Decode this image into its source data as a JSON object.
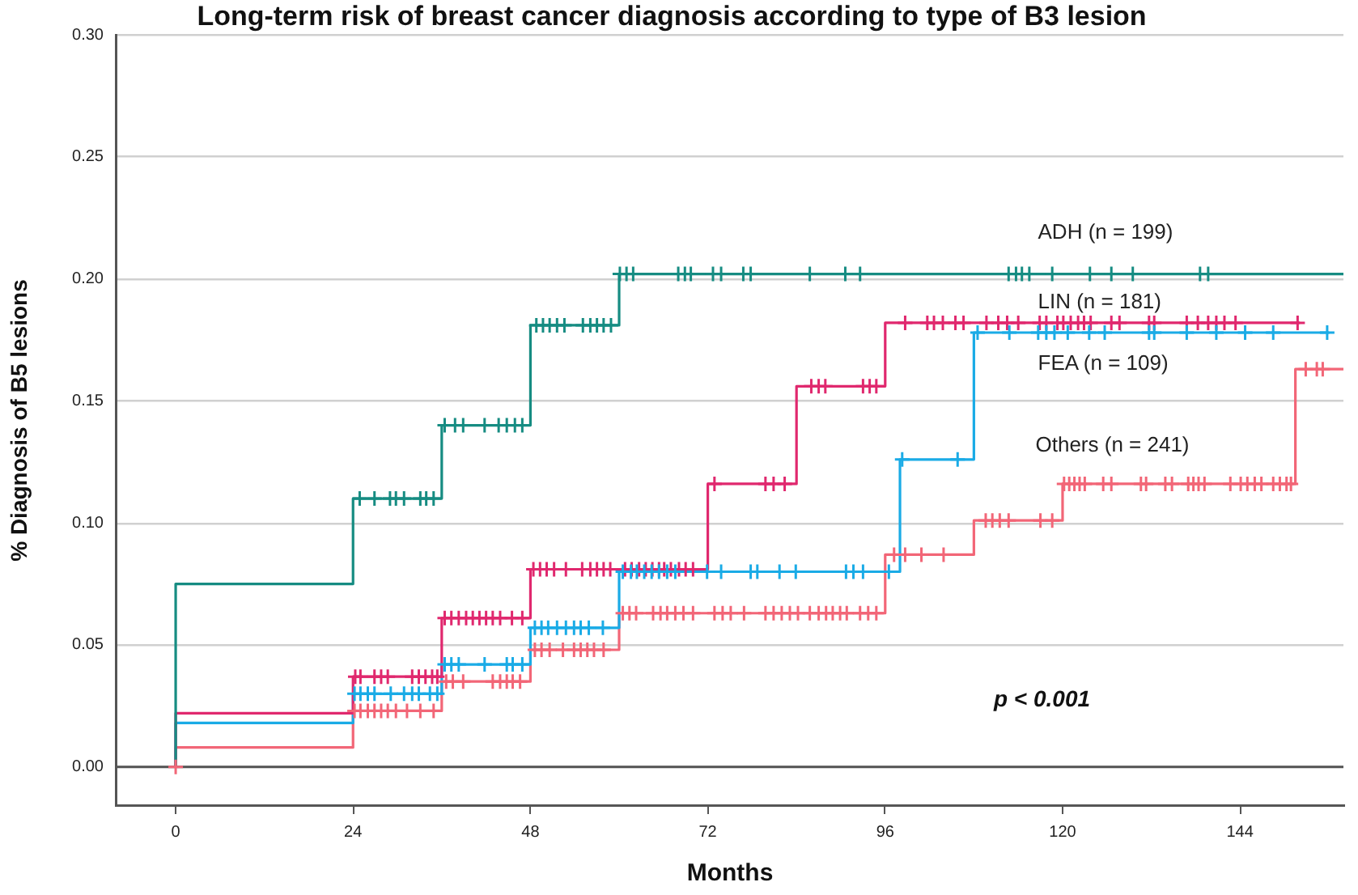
{
  "chart_data": {
    "type": "step",
    "title": "Long-term risk of breast cancer diagnosis according to type of B3 lesion",
    "xlabel": "Months",
    "ylabel": "% Diagnosis of B5 lesions",
    "annotations": [
      "p < 0.001"
    ],
    "xlim": [
      -8,
      158
    ],
    "xticks": [
      0,
      24,
      48,
      72,
      96,
      120,
      144
    ],
    "ylim": [
      -0.016,
      0.3
    ],
    "yticks": [
      {
        "value": 0,
        "label": "0.00"
      },
      {
        "value": 0.05,
        "label": "0.05"
      },
      {
        "value": 0.1,
        "label": "0.10"
      },
      {
        "value": 0.15,
        "label": "0.15"
      },
      {
        "value": 0.2,
        "label": "0.20"
      },
      {
        "value": 0.25,
        "label": "0.25"
      },
      {
        "value": 0.3,
        "label": "0.30"
      }
    ],
    "grid": "y",
    "legend": false,
    "ref_lines": [
      {
        "axis": "y",
        "value": 0,
        "color": "#555555"
      }
    ],
    "series": [
      {
        "name": "ADH (n = 199)",
        "color": "#168c82",
        "x": [
          0,
          0,
          24,
          36,
          48,
          60,
          158
        ],
        "values": [
          0,
          0.075,
          0.11,
          0.14,
          0.181,
          0.202,
          0.202
        ]
      },
      {
        "name": "LIN (n = 181)",
        "color": "#e0286e",
        "x": [
          0,
          0,
          24,
          36,
          48,
          72,
          84,
          96,
          152
        ],
        "values": [
          0,
          0.022,
          0.037,
          0.061,
          0.081,
          0.116,
          0.156,
          0.182,
          0.182
        ]
      },
      {
        "name": "FEA (n = 109)",
        "color": "#1aabe6",
        "x": [
          0,
          0,
          24,
          36,
          48,
          60,
          98,
          108,
          156
        ],
        "values": [
          0,
          0.018,
          0.03,
          0.042,
          0.057,
          0.08,
          0.126,
          0.178,
          0.178
        ]
      },
      {
        "name": "Others (n = 241)",
        "color": "#f26677",
        "x": [
          0,
          0,
          24,
          36,
          48,
          60,
          96,
          108,
          120,
          151.5,
          158
        ],
        "values": [
          0,
          0.008,
          0.023,
          0.035,
          0.048,
          0.063,
          0.087,
          0.101,
          0.116,
          0.163,
          0.163
        ]
      },
      {
        "type": "scatter",
        "marker": "cross",
        "color": "#168c82",
        "x": [
          24.9,
          26.9,
          29.0,
          29.8,
          30.9,
          33.1,
          33.9,
          34.9,
          36.4,
          37.8,
          38.9,
          41.8,
          43.7,
          44.8,
          45.9,
          46.9,
          48.8,
          49.7,
          50.6,
          51.6,
          52.6,
          55.1,
          56.1,
          57.0,
          57.9,
          58.9,
          60.1,
          61.0,
          61.9,
          68.0,
          68.9,
          69.7,
          72.7,
          73.8,
          76.8,
          77.8,
          85.8,
          90.6,
          92.6,
          112.7,
          113.7,
          114.5,
          115.5,
          118.6,
          123.7,
          126.6,
          129.5,
          138.6,
          139.7
        ],
        "values": [
          0.11,
          0.11,
          0.11,
          0.11,
          0.11,
          0.11,
          0.11,
          0.11,
          0.14,
          0.14,
          0.14,
          0.14,
          0.14,
          0.14,
          0.14,
          0.14,
          0.181,
          0.181,
          0.181,
          0.181,
          0.181,
          0.181,
          0.181,
          0.181,
          0.181,
          0.181,
          0.202,
          0.202,
          0.202,
          0.202,
          0.202,
          0.202,
          0.202,
          0.202,
          0.202,
          0.202,
          0.202,
          0.202,
          0.202,
          0.202,
          0.202,
          0.202,
          0.202,
          0.202,
          0.202,
          0.202,
          0.202,
          0.202,
          0.202
        ]
      },
      {
        "type": "scatter",
        "marker": "cross",
        "color": "#e0286e",
        "x": [
          24.3,
          25.0,
          26.9,
          27.8,
          28.7,
          32.0,
          32.9,
          33.8,
          34.7,
          35.4,
          36.4,
          37.3,
          38.3,
          39.3,
          40.2,
          41.1,
          42.0,
          42.9,
          43.9,
          45.5,
          46.9,
          48.4,
          49.3,
          50.2,
          51.2,
          52.8,
          55.0,
          56.1,
          57.0,
          57.9,
          58.8,
          60.8,
          61.7,
          62.7,
          63.6,
          64.5,
          65.4,
          66.1,
          67.0,
          68.1,
          69.0,
          70.0,
          72.9,
          79.8,
          80.9,
          82.4,
          86.0,
          87.0,
          87.9,
          93.0,
          93.9,
          94.8,
          98.7,
          101.7,
          102.6,
          103.8,
          105.5,
          106.6,
          109.7,
          111.3,
          112.5,
          114.0,
          116.9,
          117.8,
          119.3,
          120.1,
          121.1,
          122.1,
          122.9,
          123.8,
          126.6,
          127.7,
          131.7,
          132.4,
          136.8,
          138.3,
          139.7,
          140.8,
          141.9,
          143.4,
          151.8
        ],
        "values": [
          0.037,
          0.037,
          0.037,
          0.037,
          0.037,
          0.037,
          0.037,
          0.037,
          0.037,
          0.037,
          0.061,
          0.061,
          0.061,
          0.061,
          0.061,
          0.061,
          0.061,
          0.061,
          0.061,
          0.061,
          0.061,
          0.081,
          0.081,
          0.081,
          0.081,
          0.081,
          0.081,
          0.081,
          0.081,
          0.081,
          0.081,
          0.081,
          0.081,
          0.081,
          0.081,
          0.081,
          0.081,
          0.081,
          0.081,
          0.081,
          0.081,
          0.081,
          0.116,
          0.116,
          0.116,
          0.116,
          0.156,
          0.156,
          0.156,
          0.156,
          0.156,
          0.156,
          0.182,
          0.182,
          0.182,
          0.182,
          0.182,
          0.182,
          0.182,
          0.182,
          0.182,
          0.182,
          0.182,
          0.182,
          0.182,
          0.182,
          0.182,
          0.182,
          0.182,
          0.182,
          0.182,
          0.182,
          0.182,
          0.182,
          0.182,
          0.182,
          0.182,
          0.182,
          0.182,
          0.182,
          0.182
        ]
      },
      {
        "type": "scatter",
        "marker": "cross",
        "color": "#1aabe6",
        "x": [
          24.2,
          25.0,
          26.0,
          26.9,
          29.1,
          30.9,
          32.0,
          32.9,
          34.4,
          35.4,
          36.4,
          37.3,
          38.3,
          41.8,
          44.8,
          45.6,
          46.9,
          48.6,
          49.5,
          50.4,
          51.6,
          52.8,
          53.9,
          54.8,
          55.9,
          57.8,
          60.5,
          61.6,
          62.4,
          63.4,
          64.4,
          65.4,
          66.5,
          67.6,
          71.9,
          73.8,
          77.8,
          78.7,
          81.7,
          83.9,
          90.7,
          91.7,
          93.0,
          96.5,
          98.3,
          105.8,
          108.5,
          112.8,
          116.7,
          117.8,
          118.9,
          120.7,
          123.6,
          125.7,
          131.7,
          132.4,
          136.8,
          140.8,
          144.7,
          148.5,
          155.8
        ],
        "values": [
          0.03,
          0.03,
          0.03,
          0.03,
          0.03,
          0.03,
          0.03,
          0.03,
          0.03,
          0.03,
          0.042,
          0.042,
          0.042,
          0.042,
          0.042,
          0.042,
          0.042,
          0.057,
          0.057,
          0.057,
          0.057,
          0.057,
          0.057,
          0.057,
          0.057,
          0.057,
          0.08,
          0.08,
          0.08,
          0.08,
          0.08,
          0.08,
          0.08,
          0.08,
          0.08,
          0.08,
          0.08,
          0.08,
          0.08,
          0.08,
          0.08,
          0.08,
          0.08,
          0.08,
          0.126,
          0.126,
          0.178,
          0.178,
          0.178,
          0.178,
          0.178,
          0.178,
          0.178,
          0.178,
          0.178,
          0.178,
          0.178,
          0.178,
          0.178,
          0.178,
          0.178
        ]
      },
      {
        "type": "scatter",
        "marker": "cross",
        "color": "#f26677",
        "x": [
          0,
          24.2,
          25.0,
          26.0,
          26.9,
          27.8,
          28.7,
          29.8,
          31.3,
          33.1,
          34.9,
          36.6,
          37.5,
          38.9,
          42.9,
          43.9,
          44.8,
          45.6,
          46.6,
          48.6,
          49.5,
          50.6,
          52.4,
          53.9,
          54.8,
          55.7,
          56.6,
          57.9,
          60.5,
          61.4,
          62.3,
          64.6,
          65.6,
          66.5,
          67.6,
          68.7,
          70.0,
          72.9,
          74.0,
          75.1,
          76.9,
          79.8,
          80.9,
          82.0,
          83.1,
          84.2,
          85.8,
          87.0,
          88.0,
          88.9,
          89.9,
          90.8,
          92.6,
          93.7,
          94.8,
          97.2,
          98.7,
          100.9,
          103.9,
          109.6,
          110.5,
          111.5,
          112.7,
          117.0,
          118.6,
          120.2,
          120.9,
          121.6,
          122.3,
          123.0,
          125.5,
          126.6,
          130.6,
          131.3,
          133.9,
          134.8,
          137.0,
          137.7,
          138.4,
          139.2,
          142.7,
          144.1,
          145.0,
          146.0,
          146.9,
          148.5,
          149.4,
          150.3,
          150.9,
          152.9,
          154.4,
          155.2
        ],
        "values": [
          0,
          0.023,
          0.023,
          0.023,
          0.023,
          0.023,
          0.023,
          0.023,
          0.023,
          0.023,
          0.023,
          0.035,
          0.035,
          0.035,
          0.035,
          0.035,
          0.035,
          0.035,
          0.035,
          0.048,
          0.048,
          0.048,
          0.048,
          0.048,
          0.048,
          0.048,
          0.048,
          0.048,
          0.063,
          0.063,
          0.063,
          0.063,
          0.063,
          0.063,
          0.063,
          0.063,
          0.063,
          0.063,
          0.063,
          0.063,
          0.063,
          0.063,
          0.063,
          0.063,
          0.063,
          0.063,
          0.063,
          0.063,
          0.063,
          0.063,
          0.063,
          0.063,
          0.063,
          0.063,
          0.063,
          0.087,
          0.087,
          0.087,
          0.087,
          0.101,
          0.101,
          0.101,
          0.101,
          0.101,
          0.101,
          0.116,
          0.116,
          0.116,
          0.116,
          0.116,
          0.116,
          0.116,
          0.116,
          0.116,
          0.116,
          0.116,
          0.116,
          0.116,
          0.116,
          0.116,
          0.116,
          0.116,
          0.116,
          0.116,
          0.116,
          0.116,
          0.116,
          0.116,
          0.116,
          0.163,
          0.163,
          0.163
        ]
      }
    ]
  }
}
